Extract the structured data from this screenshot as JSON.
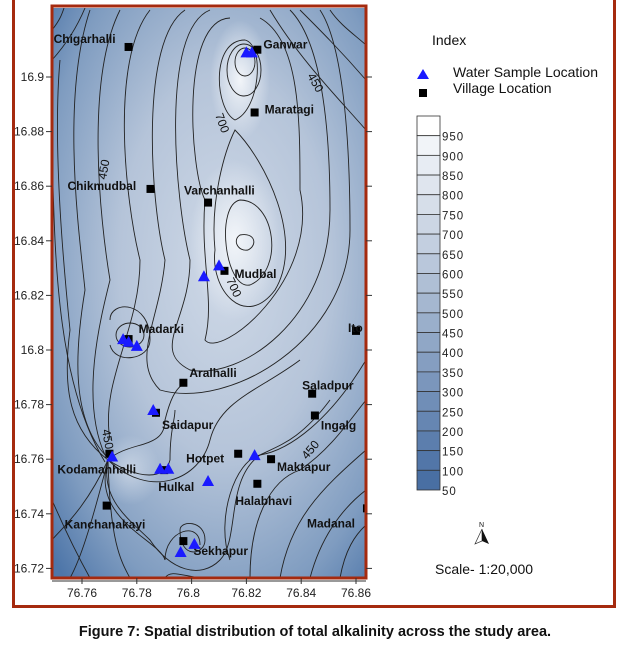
{
  "figure": {
    "caption": "Figure 7: Spatial distribution of total alkalinity across the study area."
  },
  "map": {
    "x_ticks": [
      "76.76",
      "76.78",
      "76.8",
      "76.82",
      "76.84",
      "76.86"
    ],
    "x_tick_values": [
      76.76,
      76.78,
      76.8,
      76.82,
      76.84,
      76.86
    ],
    "y_ticks": [
      "16.9",
      "16.88",
      "16.86",
      "16.84",
      "16.82",
      "16.8",
      "16.78",
      "16.76",
      "16.74",
      "16.72"
    ],
    "y_tick_values": [
      16.9,
      16.88,
      16.86,
      16.84,
      16.82,
      16.8,
      16.78,
      16.76,
      16.74,
      16.72
    ],
    "contour_labels": [
      "700",
      "700",
      "450",
      "450",
      "450",
      "450"
    ],
    "villages": [
      {
        "name": "Chigarhalli",
        "lon": 76.777,
        "lat": 16.911
      },
      {
        "name": "Ganwar",
        "lon": 76.824,
        "lat": 16.91
      },
      {
        "name": "Maratagi",
        "lon": 76.823,
        "lat": 16.887
      },
      {
        "name": "Chikmudbal",
        "lon": 76.785,
        "lat": 16.859
      },
      {
        "name": "Varchanhalli",
        "lon": 76.806,
        "lat": 16.854
      },
      {
        "name": "Mudbal",
        "lon": 76.812,
        "lat": 16.829
      },
      {
        "name": "Madarki",
        "lon": 76.777,
        "lat": 16.804
      },
      {
        "name": "Ito",
        "lon": 76.86,
        "lat": 16.807
      },
      {
        "name": "Aralhalli",
        "lon": 76.797,
        "lat": 16.788
      },
      {
        "name": "Saladpur",
        "lon": 76.844,
        "lat": 16.784
      },
      {
        "name": "Saidapur",
        "lon": 76.787,
        "lat": 16.777
      },
      {
        "name": "Ingalg",
        "lon": 76.845,
        "lat": 16.776
      },
      {
        "name": "Kodamanhalli",
        "lon": 76.77,
        "lat": 16.762
      },
      {
        "name": "Hotpet",
        "lon": 76.817,
        "lat": 16.762
      },
      {
        "name": "Maktapur",
        "lon": 76.829,
        "lat": 16.76
      },
      {
        "name": "Hulkal",
        "lon": 76.79,
        "lat": 16.756
      },
      {
        "name": "Halabhavi",
        "lon": 76.824,
        "lat": 16.751
      },
      {
        "name": "Kanchanakayi",
        "lon": 76.769,
        "lat": 16.743
      },
      {
        "name": "Madanal",
        "lon": 76.864,
        "lat": 16.742
      },
      {
        "name": "Sekhapur",
        "lon": 76.797,
        "lat": 16.73
      }
    ],
    "samples": [
      {
        "lon": 76.82,
        "lat": 16.909
      },
      {
        "lon": 76.822,
        "lat": 16.909
      },
      {
        "lon": 76.81,
        "lat": 16.831
      },
      {
        "lon": 76.8045,
        "lat": 16.827
      },
      {
        "lon": 76.775,
        "lat": 16.804
      },
      {
        "lon": 76.777,
        "lat": 16.803
      },
      {
        "lon": 76.78,
        "lat": 16.8015
      },
      {
        "lon": 76.786,
        "lat": 16.778
      },
      {
        "lon": 76.771,
        "lat": 16.761
      },
      {
        "lon": 76.7885,
        "lat": 16.7565
      },
      {
        "lon": 76.7915,
        "lat": 16.7565
      },
      {
        "lon": 76.806,
        "lat": 16.752
      },
      {
        "lon": 76.823,
        "lat": 16.7615
      },
      {
        "lon": 76.796,
        "lat": 16.726
      },
      {
        "lon": 76.801,
        "lat": 16.729
      }
    ]
  },
  "legend": {
    "title": "Index",
    "sample_label": "Water Sample Location",
    "village_label": "Village Location",
    "levels": [
      "950",
      "900",
      "850",
      "800",
      "750",
      "700",
      "650",
      "600",
      "550",
      "500",
      "450",
      "400",
      "350",
      "300",
      "250",
      "200",
      "150",
      "100",
      "50"
    ],
    "colors": [
      "#ffffff",
      "#f1f4f8",
      "#e7ecf3",
      "#dfe5ee",
      "#d6dee9",
      "#ccd6e4",
      "#c3cfe0",
      "#b9c7db",
      "#afbfd5",
      "#a5b7d0",
      "#9aafcb",
      "#90a7c6",
      "#859ec1",
      "#7b96bc",
      "#708eb7",
      "#6686b2",
      "#5c7ead",
      "#5276a8",
      "#496fa3"
    ],
    "scale": "Scale- 1:20,000",
    "north": "N"
  },
  "colors": {
    "border": "#a52a0f",
    "sample": "#1a1aff",
    "village": "#000000"
  }
}
